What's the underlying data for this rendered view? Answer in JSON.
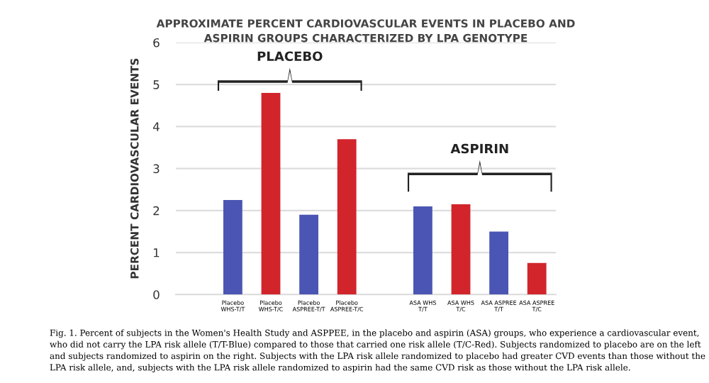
{
  "chart_data": {
    "type": "bar",
    "title": "APPROXIMATE PERCENT CARDIOVASCULAR EVENTS IN PLACEBO AND\nASPIRIN GROUPS CHARACTERIZED BY LPA GENOTYPE",
    "ylabel": "PERCENT CARDIOVASCULAR EVENTS",
    "categories": [
      null,
      "Placebo\nWHS-T/T",
      "Placebo\nWHS-T/C",
      "Placebo\nASPREE-T/T",
      "Placebo\nASPREE-T/C",
      null,
      "ASA WHS\nT/T",
      "ASA WHS\nT/C",
      "ASA ASPREE\nT/T",
      "ASA ASPREE\nT/C"
    ],
    "values": [
      null,
      2.25,
      4.8,
      1.9,
      3.7,
      null,
      2.1,
      2.15,
      1.5,
      0.75
    ],
    "colors": [
      null,
      "#4b55b3",
      "#d1252b",
      "#4b55b3",
      "#d1252b",
      null,
      "#4b55b3",
      "#d1252b",
      "#4b55b3",
      "#d1252b"
    ],
    "ylim": [
      0,
      6
    ],
    "yticks": [
      0,
      1,
      2,
      3,
      4,
      5,
      6
    ],
    "grid": "y",
    "legend": false,
    "annotations": [
      "PLACEBO",
      "ASPIRIN",
      "Fig. 1. Percent of subjects in the Women's Health Study and ASPPEE, in the placebo and aspirin (ASA) groups, who experience a cardiovascular event, who did not carry the LPA risk allele (T/T-Blue) compared to those that carried one risk allele (T/C-Red). Subjects randomized to placebo are on the left and subjects randomized to aspirin on the right. Subjects with the LPA risk allele randomized to placebo had greater CVD events than those without the LPA risk allele, and, subjects with the LPA risk allele randomized to aspirin had the same CVD risk as those without the LPA risk allele."
    ]
  }
}
